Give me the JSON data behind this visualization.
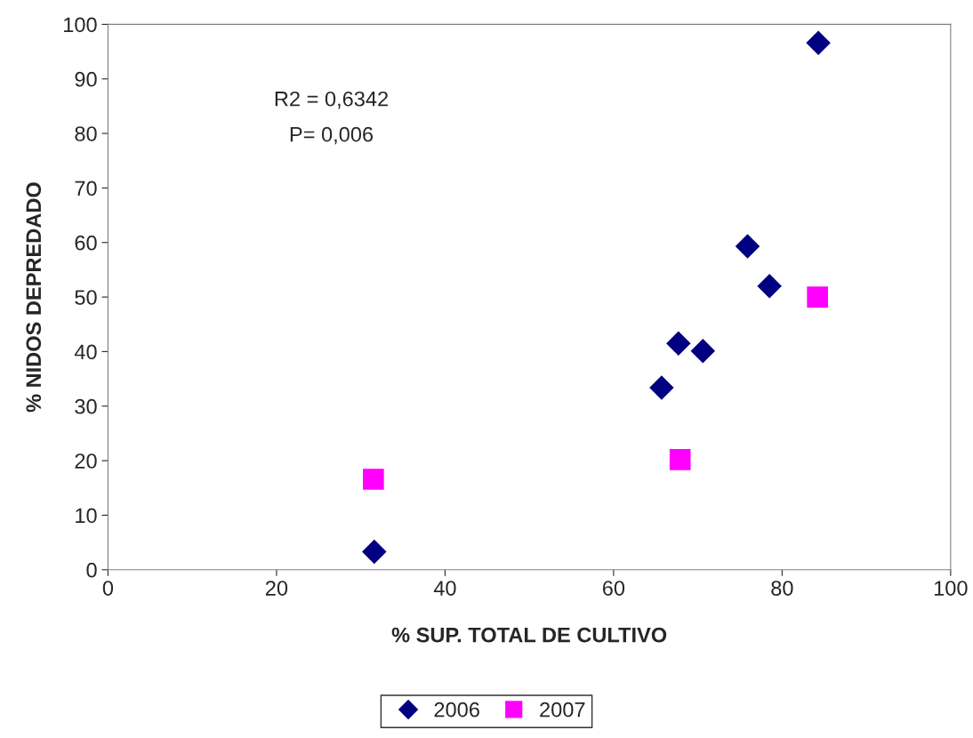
{
  "chart_data": {
    "type": "scatter",
    "xlabel": "% SUP. TOTAL DE CULTIVO",
    "ylabel": "% NIDOS DEPREDADO",
    "xlim": [
      0,
      100
    ],
    "xticks": [
      0,
      20,
      40,
      60,
      80,
      100
    ],
    "ylim": [
      0,
      100
    ],
    "yticks": [
      0,
      10,
      20,
      30,
      40,
      50,
      60,
      70,
      80,
      90,
      100
    ],
    "grid": false,
    "legend": "bottom",
    "annotations": [
      "R2 = 0,6342",
      "P= 0,006"
    ],
    "series": [
      {
        "name": "2006",
        "color": "#000080",
        "marker": "diamond",
        "x": [
          31.6,
          65.7,
          67.7,
          70.6,
          75.9,
          78.5,
          84.3
        ],
        "values": [
          3.3,
          33.4,
          41.5,
          40.1,
          59.3,
          52.0,
          96.6
        ]
      },
      {
        "name": "2007",
        "color": "#ff00ff",
        "marker": "square",
        "x": [
          31.5,
          67.9,
          84.2
        ],
        "values": [
          16.6,
          20.2,
          50.0
        ]
      }
    ]
  }
}
